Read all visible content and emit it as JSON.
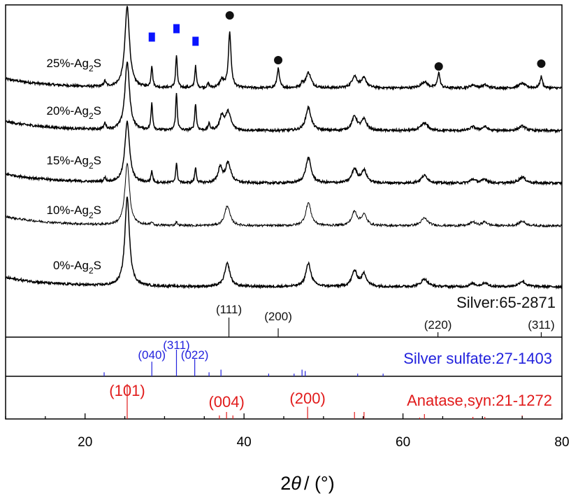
{
  "chart_data": {
    "type": "line",
    "title": "",
    "xlabel": {
      "theta": "θ",
      "prefix": "2",
      "unit": "/ (°)"
    },
    "xlim": [
      10,
      80
    ],
    "x_ticks": [
      20,
      40,
      60,
      80
    ],
    "y_axis_visible": false,
    "grid": false,
    "legend": "none",
    "samples": [
      {
        "prefix": "25%-Ag",
        "sub": "2",
        "suffix": "S"
      },
      {
        "prefix": "20%-Ag",
        "sub": "2",
        "suffix": "S"
      },
      {
        "prefix": "15%-Ag",
        "sub": "2",
        "suffix": "S"
      },
      {
        "prefix": "10%-Ag",
        "sub": "2",
        "suffix": "S"
      },
      {
        "prefix": "0%-Ag",
        "sub": "2",
        "suffix": "S"
      }
    ],
    "traces": [
      {
        "sample": "25%-Ag2S",
        "baseline": 0.12,
        "peaks": [
          [
            22.5,
            0.07,
            0.15
          ],
          [
            25.3,
            1.05,
            0.35
          ],
          [
            28.4,
            0.28,
            0.12
          ],
          [
            31.5,
            0.42,
            0.12
          ],
          [
            33.9,
            0.28,
            0.12
          ],
          [
            35.5,
            0.05,
            0.15
          ],
          [
            37.2,
            0.1,
            0.3
          ],
          [
            38.2,
            0.72,
            0.2
          ],
          [
            44.3,
            0.25,
            0.18
          ],
          [
            47.3,
            0.06,
            0.15
          ],
          [
            48.1,
            0.2,
            0.4
          ],
          [
            53.9,
            0.15,
            0.4
          ],
          [
            55.1,
            0.12,
            0.4
          ],
          [
            62.7,
            0.08,
            0.5
          ],
          [
            64.5,
            0.2,
            0.18
          ],
          [
            68.8,
            0.04,
            0.4
          ],
          [
            70.3,
            0.04,
            0.4
          ],
          [
            75.0,
            0.06,
            0.5
          ],
          [
            77.4,
            0.15,
            0.18
          ]
        ]
      },
      {
        "sample": "20%-Ag2S",
        "baseline": 0.12,
        "peaks": [
          [
            22.5,
            0.08,
            0.15
          ],
          [
            25.3,
            0.88,
            0.35
          ],
          [
            28.4,
            0.35,
            0.12
          ],
          [
            31.5,
            0.48,
            0.12
          ],
          [
            33.9,
            0.35,
            0.12
          ],
          [
            35.6,
            0.08,
            0.15
          ],
          [
            37.2,
            0.18,
            0.3
          ],
          [
            38.0,
            0.24,
            0.4
          ],
          [
            48.1,
            0.3,
            0.4
          ],
          [
            53.9,
            0.18,
            0.4
          ],
          [
            55.1,
            0.14,
            0.4
          ],
          [
            62.7,
            0.1,
            0.5
          ],
          [
            68.8,
            0.05,
            0.4
          ],
          [
            70.3,
            0.05,
            0.4
          ],
          [
            75.0,
            0.06,
            0.5
          ]
        ]
      },
      {
        "sample": "15%-Ag2S",
        "baseline": 0.12,
        "peaks": [
          [
            22.5,
            0.05,
            0.15
          ],
          [
            25.3,
            0.8,
            0.35
          ],
          [
            28.4,
            0.15,
            0.12
          ],
          [
            31.5,
            0.25,
            0.12
          ],
          [
            33.9,
            0.2,
            0.12
          ],
          [
            37.0,
            0.2,
            0.3
          ],
          [
            38.0,
            0.26,
            0.4
          ],
          [
            48.1,
            0.33,
            0.4
          ],
          [
            53.9,
            0.18,
            0.4
          ],
          [
            55.1,
            0.16,
            0.4
          ],
          [
            62.7,
            0.1,
            0.5
          ],
          [
            68.8,
            0.05,
            0.4
          ],
          [
            70.3,
            0.05,
            0.4
          ],
          [
            75.0,
            0.08,
            0.5
          ]
        ]
      },
      {
        "sample": "10%-Ag2S",
        "baseline": 0.12,
        "peaks": [
          [
            25.3,
            0.8,
            0.35
          ],
          [
            28.4,
            0.04,
            0.12
          ],
          [
            31.5,
            0.05,
            0.12
          ],
          [
            37.9,
            0.26,
            0.4
          ],
          [
            48.1,
            0.3,
            0.4
          ],
          [
            53.9,
            0.18,
            0.4
          ],
          [
            55.1,
            0.14,
            0.4
          ],
          [
            62.7,
            0.1,
            0.5
          ],
          [
            68.8,
            0.05,
            0.4
          ],
          [
            70.3,
            0.05,
            0.4
          ],
          [
            75.0,
            0.06,
            0.5
          ]
        ]
      },
      {
        "sample": "0%-Ag2S",
        "baseline": 0.12,
        "peaks": [
          [
            25.3,
            1.15,
            0.35
          ],
          [
            37.9,
            0.3,
            0.4
          ],
          [
            48.1,
            0.3,
            0.4
          ],
          [
            53.9,
            0.2,
            0.4
          ],
          [
            55.1,
            0.16,
            0.4
          ],
          [
            62.7,
            0.1,
            0.5
          ],
          [
            68.8,
            0.04,
            0.4
          ],
          [
            70.3,
            0.05,
            0.4
          ],
          [
            75.0,
            0.07,
            0.5
          ]
        ]
      }
    ],
    "markers": [
      {
        "shape": "square",
        "color": "#0a14ff",
        "x": 28.4
      },
      {
        "shape": "square",
        "color": "#0a14ff",
        "x": 31.5
      },
      {
        "shape": "square",
        "color": "#0a14ff",
        "x": 33.9
      },
      {
        "shape": "circle",
        "color": "#111111",
        "x": 38.2
      },
      {
        "shape": "circle",
        "color": "#111111",
        "x": 44.3
      },
      {
        "shape": "circle",
        "color": "#111111",
        "x": 64.5
      },
      {
        "shape": "circle",
        "color": "#111111",
        "x": 77.4
      }
    ],
    "reference_patterns": [
      {
        "name": "Silver:65-2871",
        "color": "#111111",
        "lines": [
          [
            38.1,
            100
          ],
          [
            44.3,
            45
          ],
          [
            64.4,
            25
          ],
          [
            77.4,
            25
          ]
        ],
        "hkl_labels": [
          {
            "text": "(111)",
            "x": 38.1
          },
          {
            "text": "(200)",
            "x": 44.3
          },
          {
            "text": "(220)",
            "x": 64.4
          },
          {
            "text": "(311)",
            "x": 77.4
          }
        ]
      },
      {
        "name": "Silver sulfate:27-1403",
        "color": "#2222dd",
        "lines": [
          [
            22.4,
            15
          ],
          [
            28.4,
            55
          ],
          [
            31.5,
            100
          ],
          [
            33.8,
            65
          ],
          [
            35.6,
            15
          ],
          [
            37.1,
            25
          ],
          [
            43.1,
            10
          ],
          [
            46.3,
            10
          ],
          [
            47.3,
            25
          ],
          [
            47.7,
            20
          ],
          [
            54.3,
            10
          ],
          [
            57.5,
            10
          ]
        ],
        "hkl_labels": [
          {
            "text": "(040)",
            "x": 28.4
          },
          {
            "text": "(311)",
            "x": 31.5
          },
          {
            "text": "(022)",
            "x": 33.8
          }
        ]
      },
      {
        "name": "Anatase,syn:21-1272",
        "color": "#e11b1b",
        "lines": [
          [
            25.3,
            100
          ],
          [
            36.9,
            10
          ],
          [
            37.8,
            20
          ],
          [
            38.6,
            10
          ],
          [
            48.0,
            35
          ],
          [
            53.9,
            20
          ],
          [
            55.1,
            20
          ],
          [
            62.1,
            4
          ],
          [
            62.7,
            14
          ],
          [
            68.8,
            6
          ],
          [
            70.3,
            6
          ],
          [
            75.0,
            10
          ]
        ],
        "hkl_labels": [
          {
            "text": "(101)",
            "x": 25.3
          },
          {
            "text": "(004)",
            "x": 37.8
          },
          {
            "text": "(200)",
            "x": 48.0
          }
        ]
      }
    ]
  }
}
